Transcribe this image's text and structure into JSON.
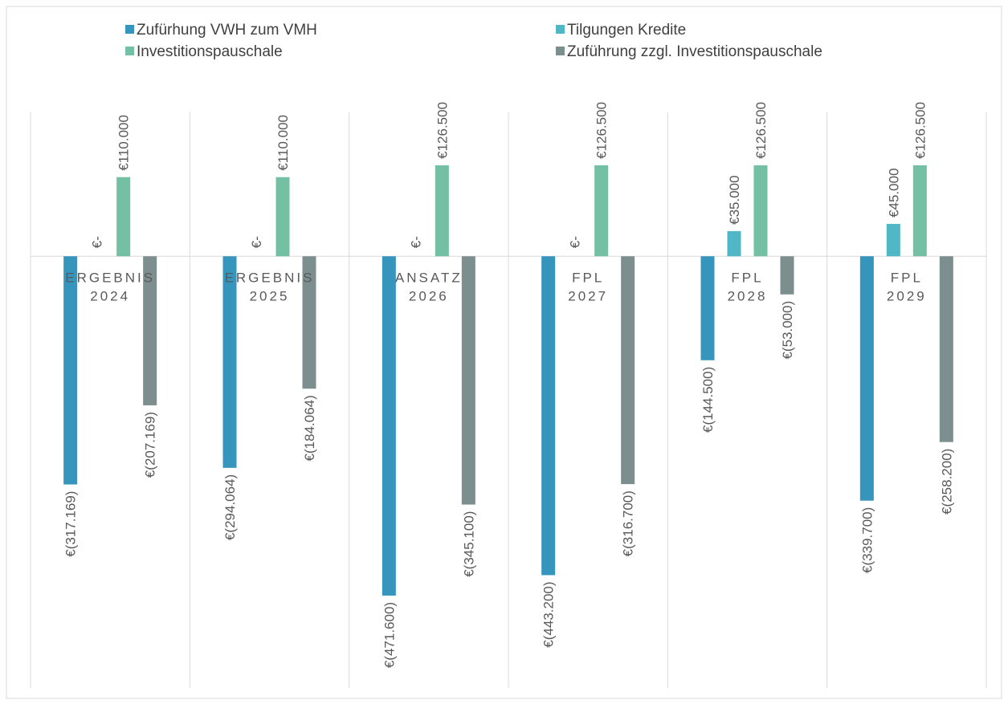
{
  "chart_data": {
    "type": "bar",
    "categories": [
      "ERGEBNIS 2024",
      "ERGEBNIS 2025",
      "ANSATZ 2026",
      "FPL 2027",
      "FPL 2028",
      "FPL 2029"
    ],
    "series": [
      {
        "name": "Zufürhung VWH zum VMH",
        "color": "#3595bd",
        "values": [
          -317169,
          -294064,
          -471600,
          -443200,
          -144500,
          -339700
        ],
        "value_labels": [
          "€(317.169)",
          "€(294.064)",
          "€(471.600)",
          "€(443.200)",
          "€(144.500)",
          "€(339.700)"
        ]
      },
      {
        "name": "Tilgungen Kredite",
        "color": "#4fb7c5",
        "values": [
          0,
          0,
          0,
          0,
          35000,
          45000
        ],
        "value_labels": [
          "€-",
          "€-",
          "€-",
          "€-",
          "€35.000",
          "€45.000"
        ]
      },
      {
        "name": "Investitionspauschale",
        "color": "#74c0a4",
        "values": [
          110000,
          110000,
          126500,
          126500,
          126500,
          126500
        ],
        "value_labels": [
          "€110.000",
          "€110.000",
          "€126.500",
          "€126.500",
          "€126.500",
          "€126.500"
        ]
      },
      {
        "name": "Zuführung zzgl. Investitionspauschale",
        "color": "#7d8e8f",
        "values": [
          -207169,
          -184064,
          -345100,
          -316700,
          -53000,
          -258200
        ],
        "value_labels": [
          "€(207.169)",
          "€(184.064)",
          "€(345.100)",
          "€(316.700)",
          "€(53.000)",
          "€(258.200)"
        ]
      }
    ],
    "ylim": [
      -600000,
      200000
    ]
  }
}
